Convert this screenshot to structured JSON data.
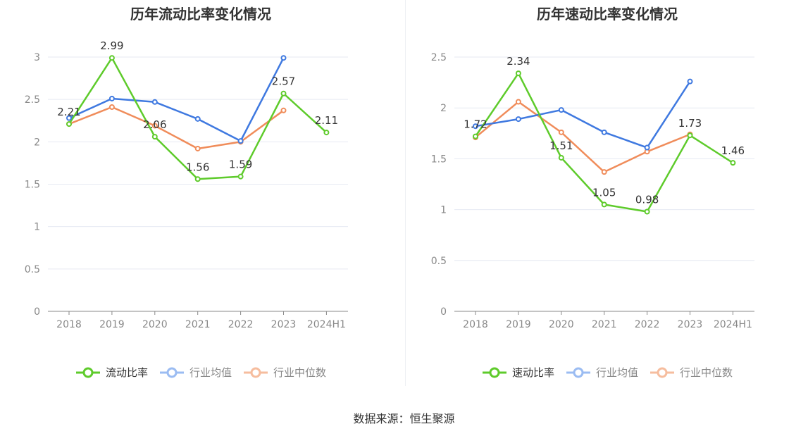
{
  "source": "数据来源：恒生聚源",
  "chart_data": [
    {
      "type": "line",
      "title": "历年流动比率变化情况",
      "categories": [
        "2018",
        "2019",
        "2020",
        "2021",
        "2022",
        "2023",
        "2024H1"
      ],
      "ylim": [
        0,
        3
      ],
      "yticks": [
        "0",
        "0.5",
        "1",
        "1.5",
        "2",
        "2.5",
        "3"
      ],
      "grid": true,
      "legend_position": "bottom",
      "series": [
        {
          "name": "流动比率",
          "color": "#5ecb2b",
          "values": [
            2.21,
            2.99,
            2.06,
            1.56,
            1.59,
            2.57,
            2.11
          ],
          "labels": [
            "2.21",
            "2.99",
            "2.06",
            "1.56",
            "1.59",
            "2.57",
            "2.11"
          ]
        },
        {
          "name": "行业均值",
          "color": "#3f79e0",
          "values": [
            2.28,
            2.51,
            2.47,
            2.27,
            2.01,
            2.99,
            null
          ]
        },
        {
          "name": "行业中位数",
          "color": "#f08c5a",
          "values": [
            2.21,
            2.41,
            2.19,
            1.92,
            2.0,
            2.37,
            null
          ]
        }
      ]
    },
    {
      "type": "line",
      "title": "历年速动比率变化情况",
      "categories": [
        "2018",
        "2019",
        "2020",
        "2021",
        "2022",
        "2023",
        "2024H1"
      ],
      "ylim": [
        0,
        2.5
      ],
      "yticks": [
        "0",
        "0.5",
        "1",
        "1.5",
        "2",
        "2.5"
      ],
      "grid": true,
      "legend_position": "bottom",
      "series": [
        {
          "name": "速动比率",
          "color": "#5ecb2b",
          "values": [
            1.72,
            2.34,
            1.51,
            1.05,
            0.98,
            1.73,
            1.46
          ],
          "labels": [
            "1.72",
            "2.34",
            "1.51",
            "1.05",
            "0.98",
            "1.73",
            "1.46"
          ]
        },
        {
          "name": "行业均值",
          "color": "#3f79e0",
          "values": [
            1.82,
            1.89,
            1.98,
            1.76,
            1.61,
            2.26,
            null
          ]
        },
        {
          "name": "行业中位数",
          "color": "#f08c5a",
          "values": [
            1.71,
            2.06,
            1.76,
            1.37,
            1.57,
            1.74,
            null
          ]
        }
      ]
    }
  ]
}
